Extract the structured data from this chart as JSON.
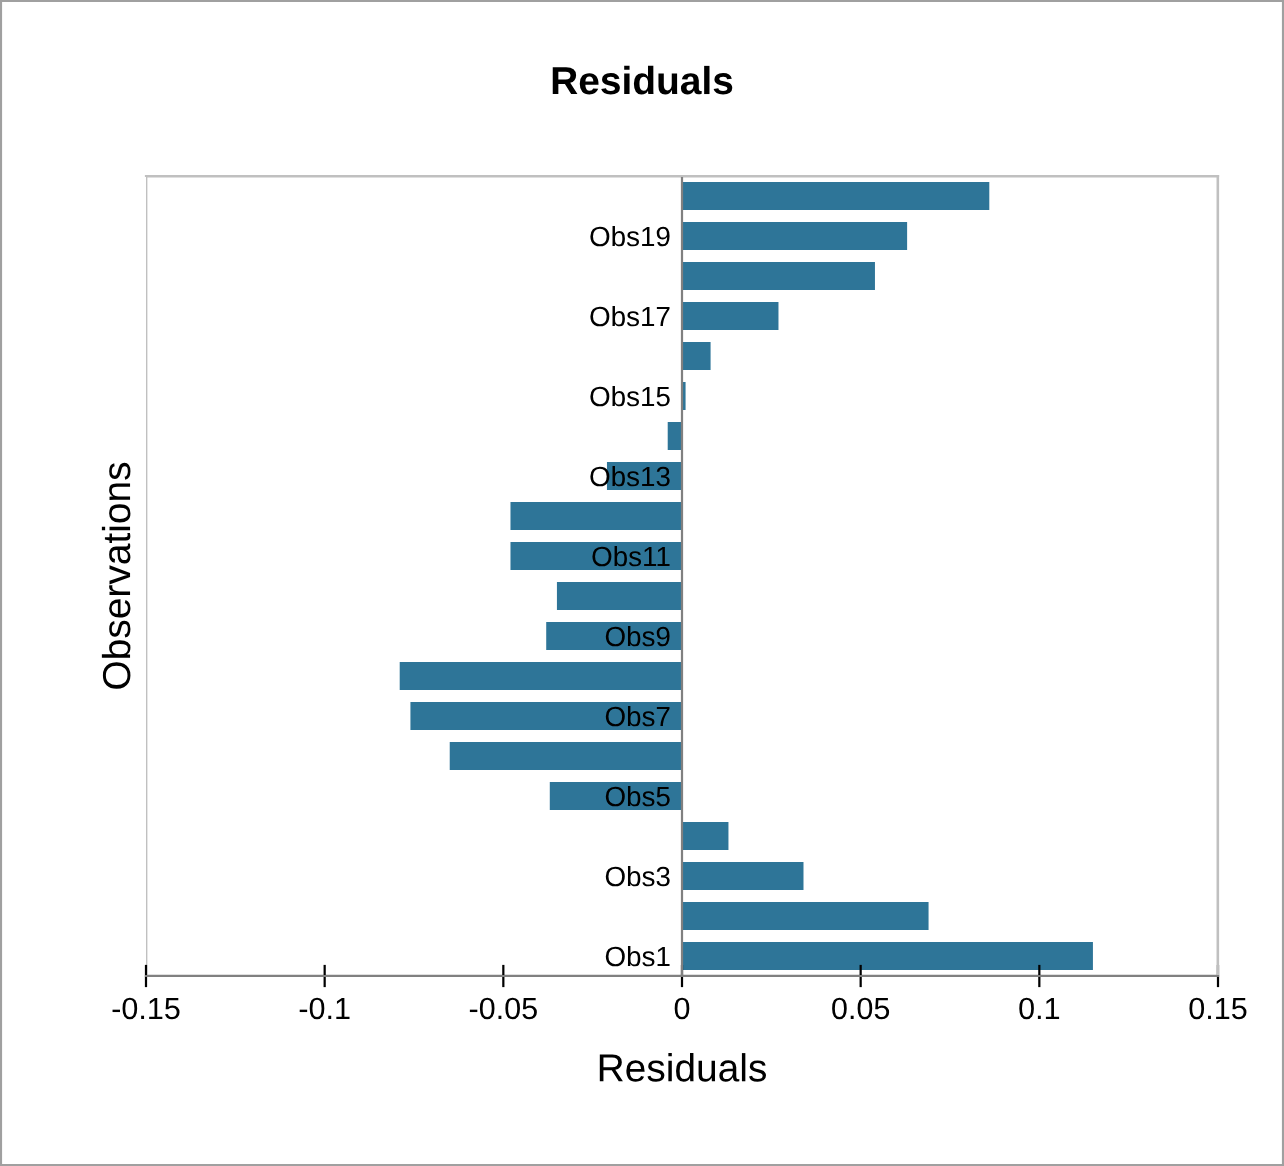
{
  "chart_data": {
    "type": "bar",
    "orientation": "horizontal",
    "title": "Residuals",
    "xlabel": "Residuals",
    "ylabel": "Observations",
    "categories": [
      null,
      "Obs19",
      null,
      "Obs17",
      null,
      "Obs15",
      null,
      "Obs13",
      null,
      "Obs11",
      null,
      "Obs9",
      null,
      "Obs7",
      null,
      "Obs5",
      null,
      "Obs3",
      null,
      "Obs1"
    ],
    "values": [
      0.086,
      0.063,
      0.054,
      0.027,
      0.008,
      0.001,
      -0.004,
      -0.021,
      -0.048,
      -0.048,
      -0.035,
      -0.038,
      -0.079,
      -0.076,
      -0.065,
      -0.037,
      0.013,
      0.034,
      0.069,
      0.115
    ],
    "color": "#2e7598",
    "xlim": [
      -0.15,
      0.15
    ],
    "xticks": [
      -0.15,
      -0.1,
      -0.05,
      0,
      0.05,
      0.1,
      0.15
    ],
    "grid": false,
    "legend": false
  }
}
